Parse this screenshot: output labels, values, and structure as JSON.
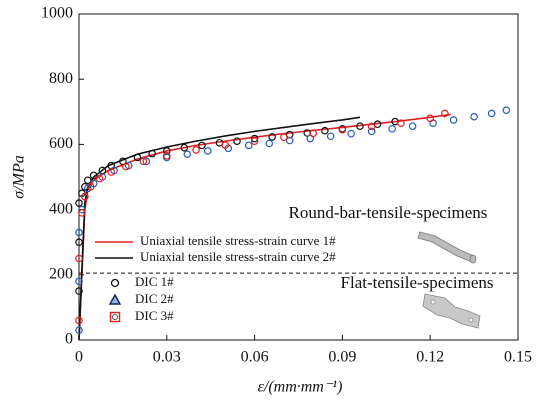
{
  "chart_data": {
    "type": "line",
    "xlabel": "ε/(mm·mm⁻¹)",
    "ylabel": "σ/MPa",
    "xlim": [
      0,
      0.15
    ],
    "xticks": [
      0,
      0.03,
      0.06,
      0.09,
      0.12,
      0.15
    ],
    "ylim": [
      0,
      1000
    ],
    "yticks": [
      0,
      200,
      400,
      600,
      800,
      1000
    ],
    "hline": 205,
    "annotations": [
      "Round-bar-tensile-specimens",
      "Flat-tensile-specimens"
    ],
    "series": [
      {
        "name": "Uniaxial tensile stress-strain curve 1#",
        "color": "#e02020",
        "style": "line",
        "x": [
          0,
          0.001,
          0.002,
          0.003,
          0.005,
          0.01,
          0.02,
          0.03,
          0.04,
          0.05,
          0.06,
          0.07,
          0.08,
          0.09,
          0.1,
          0.11,
          0.12,
          0.127
        ],
        "values": [
          0,
          200,
          400,
          460,
          490,
          520,
          555,
          580,
          597,
          610,
          622,
          633,
          643,
          652,
          662,
          672,
          683,
          692
        ]
      },
      {
        "name": "Uniaxial tensile stress-strain curve 2#",
        "color": "#111111",
        "style": "line",
        "x": [
          0,
          0.001,
          0.002,
          0.003,
          0.005,
          0.01,
          0.02,
          0.03,
          0.04,
          0.05,
          0.06,
          0.07,
          0.08,
          0.09,
          0.096
        ],
        "values": [
          0,
          220,
          420,
          470,
          500,
          535,
          570,
          592,
          610,
          626,
          640,
          652,
          664,
          675,
          683
        ]
      },
      {
        "name": "DIC 1#",
        "color": "#111111",
        "style": "scatter",
        "marker": "circle",
        "x": [
          0,
          0,
          0,
          0.001,
          0.002,
          0.003,
          0.005,
          0.008,
          0.011,
          0.015,
          0.02,
          0.025,
          0.03,
          0.036,
          0.042,
          0.048,
          0.054,
          0.06,
          0.066,
          0.072,
          0.078,
          0.084,
          0.09,
          0.096,
          0.102,
          0.108
        ],
        "values": [
          150,
          300,
          420,
          450,
          470,
          490,
          505,
          520,
          535,
          548,
          560,
          572,
          580,
          590,
          597,
          605,
          610,
          618,
          623,
          630,
          635,
          642,
          648,
          656,
          662,
          670
        ]
      },
      {
        "name": "DIC 2#",
        "color": "#2a5db0",
        "style": "scatter",
        "marker": "triangle",
        "x": [
          0,
          0,
          0,
          0.001,
          0.002,
          0.003,
          0.005,
          0.008,
          0.012,
          0.017,
          0.023,
          0.03,
          0.037,
          0.044,
          0.051,
          0.058,
          0.065,
          0.072,
          0.079,
          0.086,
          0.093,
          0.1,
          0.107,
          0.114,
          0.121,
          0.128,
          0.135,
          0.141,
          0.146
        ],
        "values": [
          30,
          180,
          330,
          400,
          440,
          465,
          480,
          500,
          520,
          535,
          548,
          560,
          570,
          580,
          588,
          597,
          603,
          612,
          618,
          625,
          633,
          640,
          648,
          656,
          665,
          675,
          685,
          695,
          705
        ]
      },
      {
        "name": "DIC 3#",
        "color": "#e02020",
        "style": "scatter",
        "marker": "square",
        "x": [
          0,
          0,
          0.001,
          0.002,
          0.004,
          0.007,
          0.011,
          0.016,
          0.022,
          0.03,
          0.04,
          0.05,
          0.06,
          0.07,
          0.08,
          0.09,
          0.1,
          0.11,
          0.12,
          0.125
        ],
        "values": [
          60,
          250,
          390,
          440,
          470,
          495,
          515,
          532,
          548,
          565,
          583,
          598,
          610,
          622,
          634,
          645,
          655,
          665,
          680,
          695
        ]
      }
    ]
  }
}
